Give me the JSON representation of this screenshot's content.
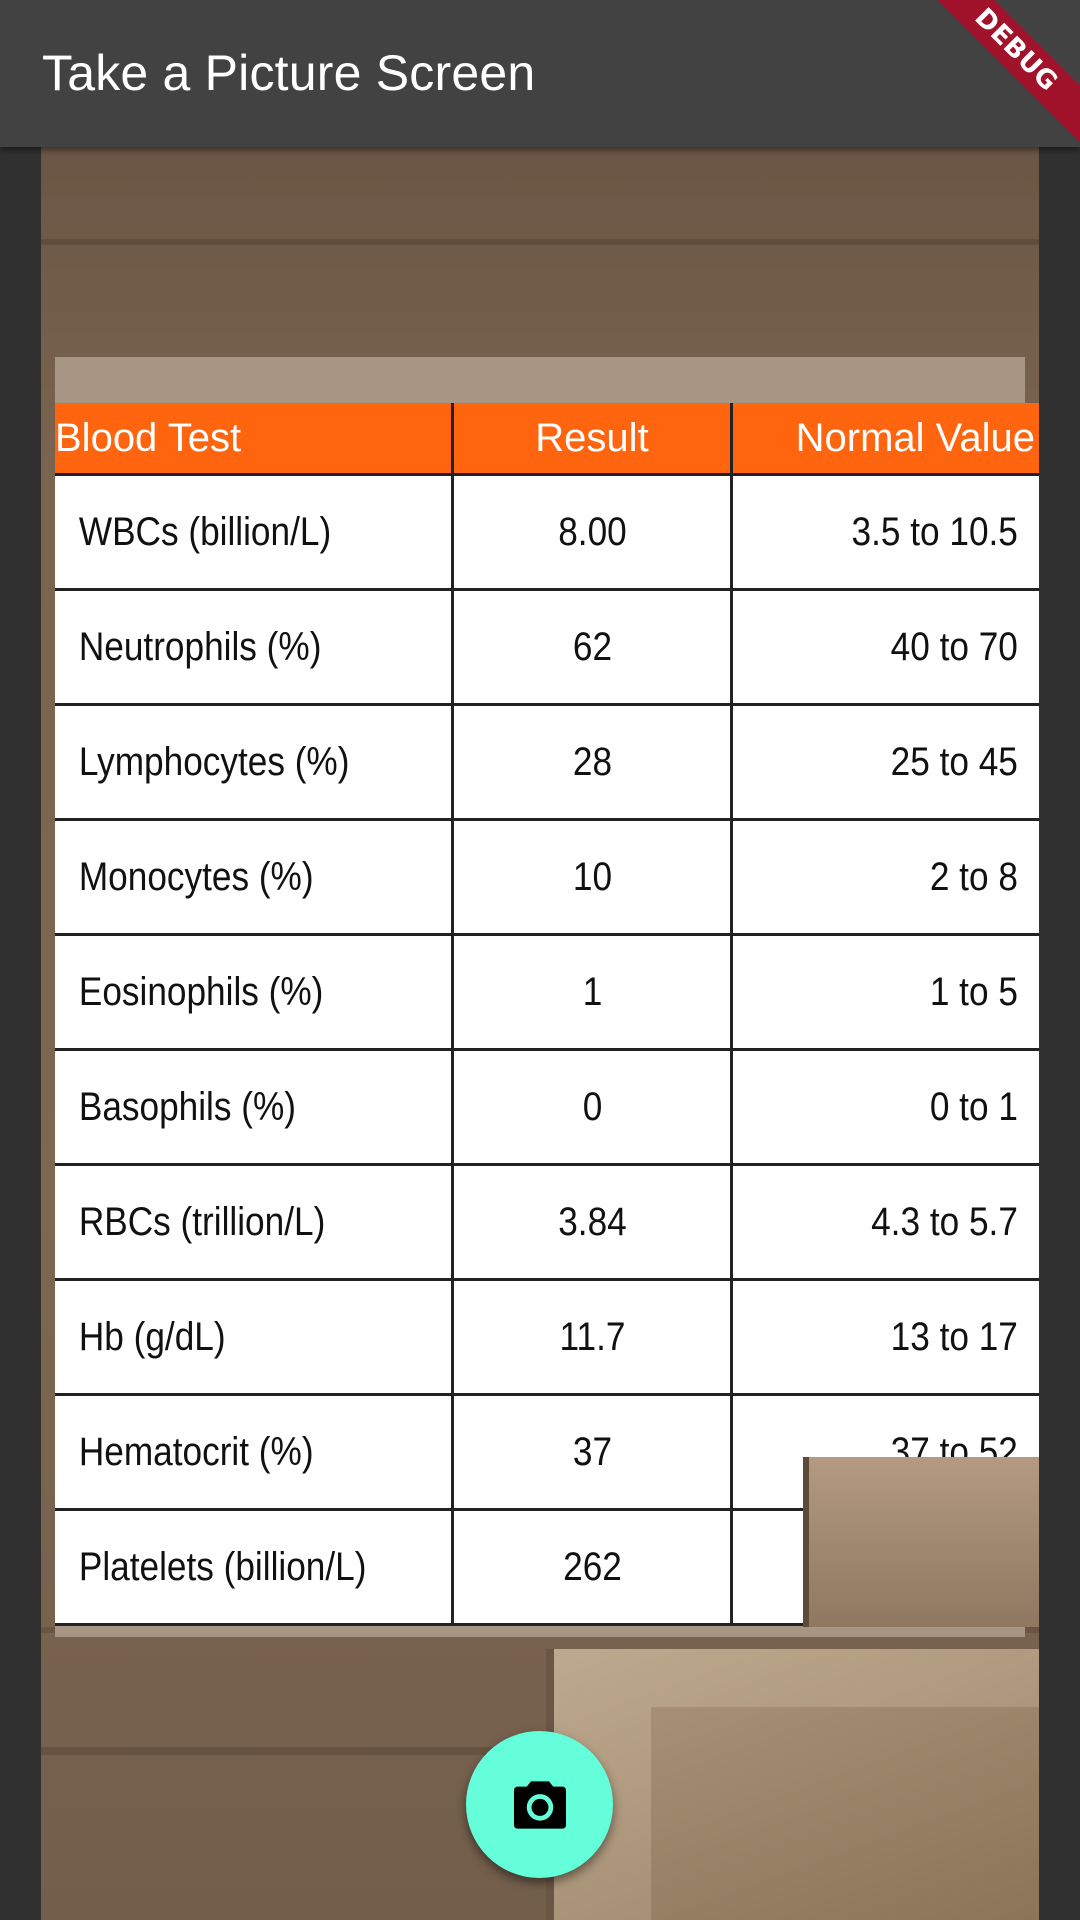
{
  "appbar": {
    "title": "Take a Picture Screen"
  },
  "debug_banner": "DEBUG",
  "camera_preview": {
    "table": {
      "headers": [
        "Blood Test",
        "Result",
        "Normal Value"
      ],
      "rows": [
        [
          "WBCs (billion/L)",
          "8.00",
          "3.5 to 10.5"
        ],
        [
          "Neutrophils (%)",
          "62",
          "40 to 70"
        ],
        [
          "Lymphocytes (%)",
          "28",
          "25 to 45"
        ],
        [
          "Monocytes (%)",
          "10",
          "2 to 8"
        ],
        [
          "Eosinophils (%)",
          "1",
          "1 to 5"
        ],
        [
          "Basophils (%)",
          "0",
          "0 to 1"
        ],
        [
          "RBCs (trillion/L)",
          "3.84",
          "4.3 to 5.7"
        ],
        [
          "Hb (g/dL)",
          "11.7",
          "13 to 17"
        ],
        [
          "Hematocrit (%)",
          "37",
          "37 to 52"
        ],
        [
          "Platelets (billion/L)",
          "262",
          ""
        ]
      ]
    }
  },
  "fab": {
    "icon": "camera-icon"
  },
  "colors": {
    "appbar": "#424242",
    "fab": "#64ffda",
    "table_header": "#ff640f",
    "debug": "#a0132b"
  }
}
